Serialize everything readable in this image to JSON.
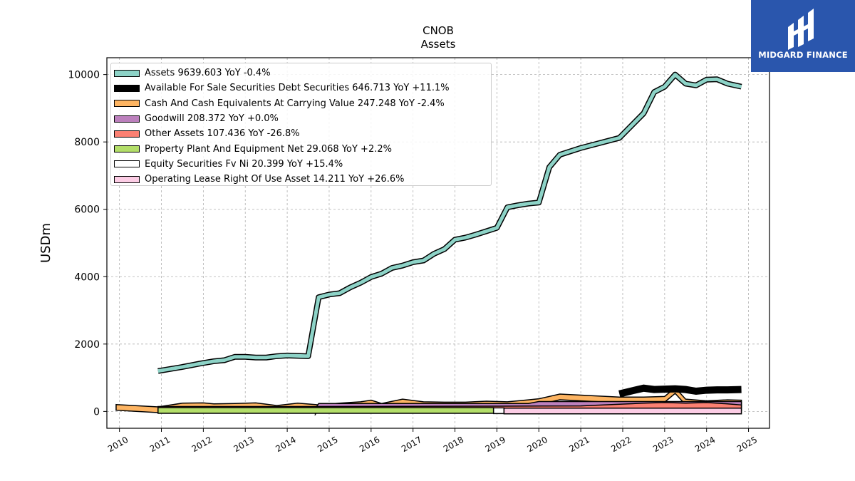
{
  "chart_data": {
    "type": "line",
    "title": "CNOB",
    "subtitle": "Assets",
    "ylabel": "USDm",
    "xlabel": "",
    "xlim": [
      2009.7,
      2025.5
    ],
    "ylim": [
      -500,
      10500
    ],
    "yticks": [
      0,
      2000,
      4000,
      6000,
      8000,
      10000
    ],
    "xticks": [
      "2010",
      "2011",
      "2012",
      "2013",
      "2014",
      "2015",
      "2016",
      "2017",
      "2018",
      "2019",
      "2020",
      "2021",
      "2022",
      "2023",
      "2024",
      "2025"
    ],
    "grid": true,
    "legend_position": "top-left",
    "series": [
      {
        "name": "Assets",
        "legend": "Assets  9639.603 YoY -0.4%",
        "color": "#8dd3c7",
        "fill": false,
        "x": [
          2010.92,
          2011.5,
          2011.92,
          2012.25,
          2012.5,
          2012.75,
          2013.0,
          2013.25,
          2013.5,
          2013.75,
          2014.0,
          2014.25,
          2014.5,
          2014.75,
          2015.0,
          2015.25,
          2015.5,
          2015.75,
          2016.0,
          2016.25,
          2016.5,
          2016.75,
          2017.0,
          2017.25,
          2017.5,
          2017.75,
          2018.0,
          2018.25,
          2018.5,
          2018.75,
          2019.0,
          2019.25,
          2019.5,
          2019.75,
          2020.0,
          2020.25,
          2020.5,
          2020.75,
          2021.0,
          2021.92,
          2022.5,
          2022.75,
          2023.0,
          2023.25,
          2023.5,
          2023.75,
          2024.0,
          2024.25,
          2024.5,
          2024.83
        ],
        "y": [
          1200,
          1320,
          1420,
          1490,
          1520,
          1620,
          1620,
          1600,
          1600,
          1640,
          1660,
          1650,
          1640,
          3390,
          3470,
          3510,
          3680,
          3820,
          3990,
          4090,
          4260,
          4330,
          4430,
          4480,
          4680,
          4820,
          5100,
          5160,
          5250,
          5350,
          5450,
          6060,
          6120,
          6170,
          6200,
          7250,
          7620,
          7720,
          7820,
          8120,
          8850,
          9480,
          9640,
          10000,
          9730,
          9680,
          9850,
          9860,
          9730,
          9640
        ]
      },
      {
        "name": "Available For Sale Securities Debt Securities",
        "legend": "Available For Sale Securities Debt Securities  646.713 YoY +11.1%",
        "color": "#000000",
        "fill": false,
        "x": [
          2021.92,
          2022.25,
          2022.5,
          2022.75,
          2023.0,
          2023.25,
          2023.5,
          2023.75,
          2024.0,
          2024.25,
          2024.5,
          2024.83
        ],
        "y": [
          520,
          620,
          690,
          650,
          660,
          670,
          650,
          600,
          630,
          640,
          640,
          650
        ]
      },
      {
        "name": "Cash And Cash Equivalents At Carrying Value",
        "legend": "Cash And Cash Equivalents At Carrying Value  247.248 YoY -2.4%",
        "color": "#fdb462",
        "fill": true,
        "x": [
          2009.92,
          2010.92,
          2011.5,
          2012.0,
          2012.25,
          2012.75,
          2013.25,
          2013.75,
          2014.25,
          2014.75,
          2015.25,
          2015.75,
          2016.0,
          2016.25,
          2016.75,
          2017.25,
          2017.75,
          2018.25,
          2018.75,
          2019.25,
          2019.75,
          2020.0,
          2020.5,
          2021.0,
          2021.92,
          2022.5,
          2023.0,
          2023.25,
          2023.5,
          2024.0,
          2024.5,
          2024.83
        ],
        "y": [
          120,
          50,
          160,
          170,
          140,
          150,
          170,
          90,
          160,
          110,
          160,
          200,
          250,
          150,
          280,
          200,
          190,
          190,
          220,
          200,
          260,
          290,
          430,
          400,
          340,
          340,
          360,
          620,
          280,
          230,
          260,
          250
        ]
      },
      {
        "name": "Goodwill",
        "legend": "Goodwill  208.372 YoY +0.0%",
        "color": "#bc80bd",
        "fill": true,
        "x": [
          2014.67,
          2014.75,
          2019.75,
          2020.0,
          2024.83
        ],
        "y": [
          0,
          150,
          150,
          208,
          208
        ]
      },
      {
        "name": "Other Assets",
        "legend": "Other Assets  107.436 YoY -26.8%",
        "color": "#fb8072",
        "fill": true,
        "x": [
          2010.92,
          2014.75,
          2019.0,
          2021.0,
          2022.5,
          2023.0,
          2023.5,
          2024.0,
          2024.5,
          2024.83
        ],
        "y": [
          60,
          60,
          70,
          80,
          160,
          180,
          160,
          180,
          140,
          107
        ]
      },
      {
        "name": "Property Plant And Equipment Net",
        "legend": "Property Plant And Equipment Net  29.068 YoY +2.2%",
        "color": "#b3de69",
        "fill": true,
        "x": [
          2010.92,
          2018.92
        ],
        "y": [
          29,
          29
        ]
      },
      {
        "name": "Equity Securities Fv Ni",
        "legend": "Equity Securities Fv Ni  20.399 YoY +15.4%",
        "color": "#ffffff",
        "fill": true,
        "x": [
          2018.92,
          2019.17
        ],
        "y": [
          20,
          20
        ]
      },
      {
        "name": "Operating Lease Right Of Use Asset",
        "legend": "Operating Lease Right Of Use Asset  14.211 YoY +26.6%",
        "color": "#fccde5",
        "fill": true,
        "x": [
          2019.17,
          2024.83
        ],
        "y": [
          14,
          14
        ]
      }
    ]
  },
  "watermark": {
    "text": "MIDGARD FINANCE"
  }
}
